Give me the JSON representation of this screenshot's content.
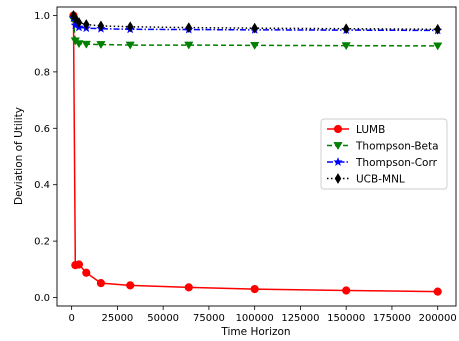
{
  "chart_data": {
    "type": "line",
    "title": "",
    "xlabel": "Time Horizon",
    "ylabel": "Deviation of Utility",
    "xlim": [
      -8000,
      210000
    ],
    "ylim": [
      -0.03,
      1.03
    ],
    "xticks": [
      0,
      25000,
      50000,
      75000,
      100000,
      125000,
      150000,
      175000,
      200000
    ],
    "yticks": [
      0.0,
      0.2,
      0.4,
      0.6,
      0.8,
      1.0
    ],
    "xtick_labels": [
      "0",
      "25000",
      "50000",
      "75000",
      "100000",
      "125000",
      "150000",
      "175000",
      "200000"
    ],
    "ytick_labels": [
      "0.0",
      "0.2",
      "0.4",
      "0.6",
      "0.8",
      "1.0"
    ],
    "grid": false,
    "legend_position": "center-right",
    "series": [
      {
        "name": "LUMB",
        "color": "#ff0000",
        "linestyle": "solid",
        "marker": "circle",
        "x": [
          1000,
          2000,
          4000,
          8000,
          16000,
          32000,
          64000,
          100000,
          150000,
          200000
        ],
        "y": [
          1.0,
          0.115,
          0.117,
          0.088,
          0.051,
          0.043,
          0.036,
          0.03,
          0.025,
          0.021
        ]
      },
      {
        "name": "Thompson-Beta",
        "color": "#008000",
        "linestyle": "dashed",
        "marker": "triangle-down",
        "x": [
          1000,
          2000,
          4000,
          8000,
          16000,
          32000,
          64000,
          100000,
          150000,
          200000
        ],
        "y": [
          0.985,
          0.91,
          0.9,
          0.898,
          0.897,
          0.895,
          0.895,
          0.894,
          0.893,
          0.892
        ]
      },
      {
        "name": "Thompson-Corr",
        "color": "#0000ff",
        "linestyle": "dashdot",
        "marker": "star",
        "x": [
          1000,
          2000,
          4000,
          8000,
          16000,
          32000,
          64000,
          100000,
          150000,
          200000
        ],
        "y": [
          0.99,
          0.965,
          0.958,
          0.955,
          0.953,
          0.951,
          0.95,
          0.949,
          0.948,
          0.947
        ]
      },
      {
        "name": "UCB-MNL",
        "color": "#000000",
        "linestyle": "dotted",
        "marker": "diamond",
        "x": [
          1000,
          2000,
          4000,
          8000,
          16000,
          32000,
          64000,
          100000,
          150000,
          200000
        ],
        "y": [
          1.0,
          0.99,
          0.975,
          0.968,
          0.963,
          0.96,
          0.957,
          0.955,
          0.953,
          0.951
        ]
      }
    ]
  }
}
